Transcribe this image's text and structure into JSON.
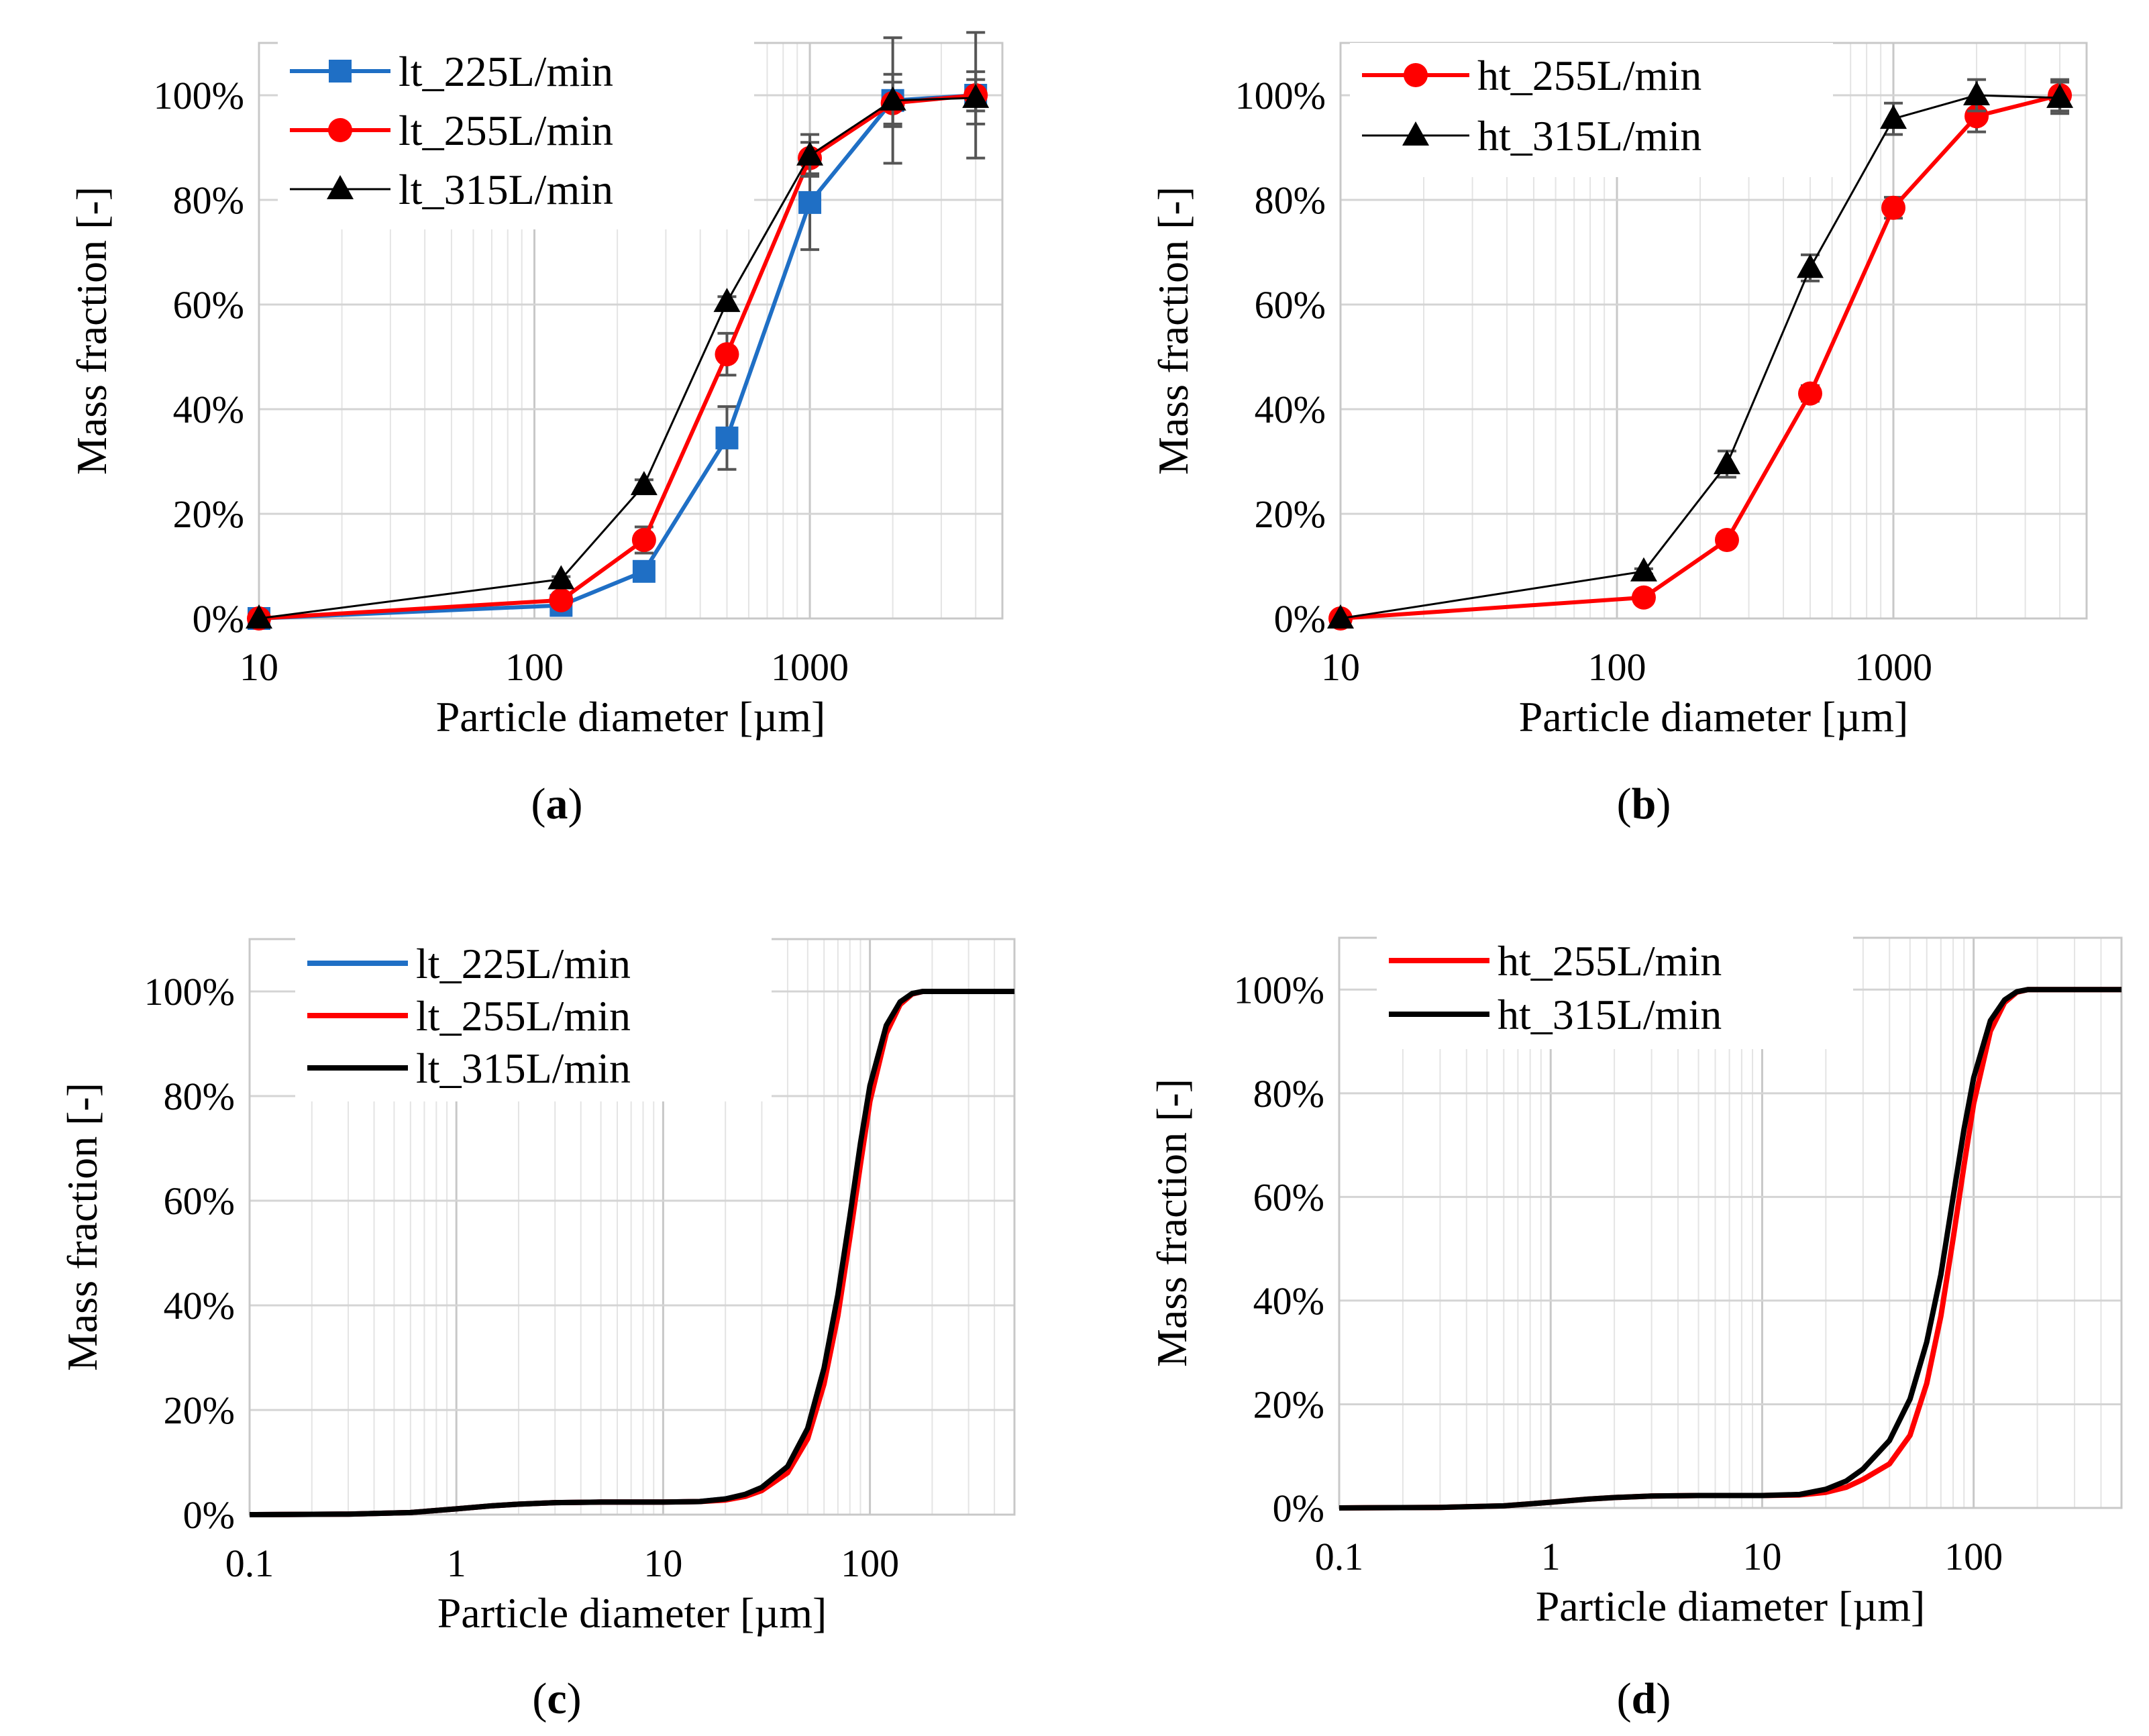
{
  "chart_data": [
    {
      "type": "line",
      "panel": "a",
      "caption_open": "(",
      "caption_letter": "a",
      "caption_close": ")",
      "xlabel": "Particle diameter [µm]",
      "ylabel": "Mass fraction [-]",
      "xscale": "log",
      "xlim": [
        10,
        5000
      ],
      "ylim": [
        0,
        1.1
      ],
      "xticks": [
        10,
        100,
        1000
      ],
      "xtick_labels": [
        "10",
        "100",
        "1000"
      ],
      "yticks": [
        0,
        0.2,
        0.4,
        0.6,
        0.8,
        1.0
      ],
      "ytick_labels": [
        "0%",
        "20%",
        "40%",
        "60%",
        "80%",
        "100%"
      ],
      "grid": true,
      "legend_position": "top-left",
      "series": [
        {
          "name": "lt_225L/min",
          "color": "#1f6fc5",
          "marker": "square",
          "line_width": "normal",
          "x": [
            10,
            125,
            250,
            500,
            1000,
            2000,
            4000
          ],
          "y": [
            0.0,
            0.025,
            0.09,
            0.345,
            0.795,
            0.99,
            1.0
          ],
          "err": [
            0,
            0.005,
            0.015,
            0.06,
            0.09,
            0.12,
            0.12
          ]
        },
        {
          "name": "lt_255L/min",
          "color": "#ff0000",
          "marker": "circle",
          "line_width": "normal",
          "x": [
            10,
            125,
            250,
            500,
            1000,
            2000,
            4000
          ],
          "y": [
            0.0,
            0.035,
            0.15,
            0.505,
            0.88,
            0.985,
            1.0
          ],
          "err": [
            0,
            0.005,
            0.025,
            0.04,
            0.03,
            0.04,
            0.03
          ]
        },
        {
          "name": "lt_315L/min",
          "color": "#000000",
          "marker": "triangle",
          "line_width": "thin",
          "x": [
            10,
            125,
            250,
            500,
            1000,
            2000,
            4000
          ],
          "y": [
            0.0,
            0.075,
            0.255,
            0.605,
            0.885,
            0.99,
            0.995
          ],
          "err": [
            0,
            0.005,
            0.01,
            0.01,
            0.04,
            0.05,
            0.05
          ]
        }
      ]
    },
    {
      "type": "line",
      "panel": "b",
      "caption_open": "(",
      "caption_letter": "b",
      "caption_close": ")",
      "xlabel": "Particle diameter [µm]",
      "ylabel": "Mass fraction [-]",
      "xscale": "log",
      "xlim": [
        10,
        5000
      ],
      "ylim": [
        0,
        1.1
      ],
      "xticks": [
        10,
        100,
        1000
      ],
      "xtick_labels": [
        "10",
        "100",
        "1000"
      ],
      "yticks": [
        0,
        0.2,
        0.4,
        0.6,
        0.8,
        1.0
      ],
      "ytick_labels": [
        "0%",
        "20%",
        "40%",
        "60%",
        "80%",
        "100%"
      ],
      "grid": true,
      "legend_position": "top-left",
      "series": [
        {
          "name": "ht_255L/min",
          "color": "#ff0000",
          "marker": "circle",
          "line_width": "normal",
          "x": [
            10,
            125,
            250,
            500,
            1000,
            2000,
            4000
          ],
          "y": [
            0.0,
            0.04,
            0.15,
            0.43,
            0.785,
            0.96,
            1.0
          ],
          "err": [
            0,
            0.005,
            0.01,
            0.015,
            0.02,
            0.03,
            0.03
          ]
        },
        {
          "name": "ht_315L/min",
          "color": "#000000",
          "marker": "triangle",
          "line_width": "thin",
          "x": [
            10,
            125,
            250,
            500,
            1000,
            2000,
            4000
          ],
          "y": [
            0.0,
            0.09,
            0.295,
            0.67,
            0.955,
            1.0,
            0.995
          ],
          "err": [
            0,
            0.005,
            0.025,
            0.025,
            0.03,
            0.03,
            0.03
          ]
        }
      ]
    },
    {
      "type": "line",
      "panel": "c",
      "caption_open": "(",
      "caption_letter": "c",
      "caption_close": ")",
      "xlabel": "Particle diameter [µm]",
      "ylabel": "Mass fraction [-]",
      "xscale": "log",
      "xlim": [
        0.1,
        500
      ],
      "ylim": [
        0,
        1.1
      ],
      "xticks": [
        0.1,
        1,
        10,
        100
      ],
      "xtick_labels": [
        "0.1",
        "1",
        "10",
        "100"
      ],
      "yticks": [
        0,
        0.2,
        0.4,
        0.6,
        0.8,
        1.0
      ],
      "ytick_labels": [
        "0%",
        "20%",
        "40%",
        "60%",
        "80%",
        "100%"
      ],
      "grid": true,
      "legend_position": "top-left",
      "series": [
        {
          "name": "lt_225L/min",
          "color": "#1f6fc5",
          "marker": "none",
          "line_width": "thick",
          "x": [
            0.1,
            0.3,
            0.6,
            1,
            1.5,
            2,
            3,
            5,
            10,
            15,
            20,
            25,
            30,
            40,
            50,
            60,
            70,
            80,
            90,
            100,
            120,
            140,
            160,
            180,
            200,
            300,
            500
          ],
          "y": [
            0,
            0.001,
            0.004,
            0.011,
            0.017,
            0.02,
            0.023,
            0.024,
            0.024,
            0.025,
            0.03,
            0.038,
            0.05,
            0.088,
            0.16,
            0.27,
            0.41,
            0.56,
            0.7,
            0.81,
            0.93,
            0.98,
            0.995,
            1.0,
            1.0,
            1.0,
            1.0
          ]
        },
        {
          "name": "lt_255L/min",
          "color": "#ff0000",
          "marker": "none",
          "line_width": "thick",
          "x": [
            0.1,
            0.3,
            0.6,
            1,
            1.5,
            2,
            3,
            5,
            10,
            15,
            20,
            25,
            30,
            40,
            50,
            60,
            70,
            80,
            90,
            100,
            120,
            140,
            160,
            180,
            200,
            300,
            500
          ],
          "y": [
            0,
            0.001,
            0.004,
            0.011,
            0.017,
            0.02,
            0.023,
            0.024,
            0.024,
            0.025,
            0.028,
            0.035,
            0.046,
            0.08,
            0.145,
            0.25,
            0.38,
            0.53,
            0.67,
            0.79,
            0.92,
            0.975,
            0.995,
            1.0,
            1.0,
            1.0,
            1.0
          ]
        },
        {
          "name": "lt_315L/min",
          "color": "#000000",
          "marker": "none",
          "line_width": "thick",
          "x": [
            0.1,
            0.3,
            0.6,
            1,
            1.5,
            2,
            3,
            5,
            10,
            15,
            20,
            25,
            30,
            40,
            50,
            60,
            70,
            80,
            90,
            100,
            120,
            140,
            160,
            180,
            200,
            300,
            500
          ],
          "y": [
            0,
            0.001,
            0.004,
            0.011,
            0.017,
            0.02,
            0.023,
            0.024,
            0.024,
            0.025,
            0.03,
            0.039,
            0.052,
            0.092,
            0.165,
            0.28,
            0.42,
            0.57,
            0.71,
            0.82,
            0.935,
            0.98,
            0.996,
            1.0,
            1.0,
            1.0,
            1.0
          ]
        }
      ]
    },
    {
      "type": "line",
      "panel": "d",
      "caption_open": "(",
      "caption_letter": "d",
      "caption_close": ")",
      "xlabel": "Particle diameter [µm]",
      "ylabel": "Mass fraction [-]",
      "xscale": "log",
      "xlim": [
        0.1,
        500
      ],
      "ylim": [
        0,
        1.1
      ],
      "xticks": [
        0.1,
        1,
        10,
        100
      ],
      "xtick_labels": [
        "0.1",
        "1",
        "10",
        "100"
      ],
      "yticks": [
        0,
        0.2,
        0.4,
        0.6,
        0.8,
        1.0
      ],
      "ytick_labels": [
        "0%",
        "20%",
        "40%",
        "60%",
        "80%",
        "100%"
      ],
      "grid": true,
      "legend_position": "top-left",
      "series": [
        {
          "name": "ht_255L/min",
          "color": "#ff0000",
          "marker": "none",
          "line_width": "thick",
          "x": [
            0.1,
            0.3,
            0.6,
            1,
            1.5,
            2,
            3,
            5,
            10,
            15,
            20,
            25,
            30,
            40,
            50,
            60,
            70,
            80,
            90,
            100,
            120,
            140,
            160,
            180,
            200,
            300,
            500
          ],
          "y": [
            0,
            0.001,
            0.004,
            0.011,
            0.017,
            0.02,
            0.023,
            0.024,
            0.024,
            0.025,
            0.03,
            0.04,
            0.055,
            0.085,
            0.14,
            0.24,
            0.37,
            0.52,
            0.66,
            0.78,
            0.92,
            0.975,
            0.995,
            1.0,
            1.0,
            1.0,
            1.0
          ]
        },
        {
          "name": "ht_315L/min",
          "color": "#000000",
          "marker": "none",
          "line_width": "thick",
          "x": [
            0.1,
            0.3,
            0.6,
            1,
            1.5,
            2,
            3,
            5,
            10,
            15,
            20,
            25,
            30,
            40,
            50,
            60,
            70,
            80,
            90,
            100,
            120,
            140,
            160,
            180,
            200,
            300,
            500
          ],
          "y": [
            0,
            0.001,
            0.004,
            0.011,
            0.017,
            0.02,
            0.023,
            0.024,
            0.024,
            0.026,
            0.036,
            0.052,
            0.075,
            0.13,
            0.21,
            0.32,
            0.45,
            0.6,
            0.73,
            0.83,
            0.94,
            0.98,
            0.996,
            1.0,
            1.0,
            1.0,
            1.0
          ]
        }
      ]
    }
  ]
}
